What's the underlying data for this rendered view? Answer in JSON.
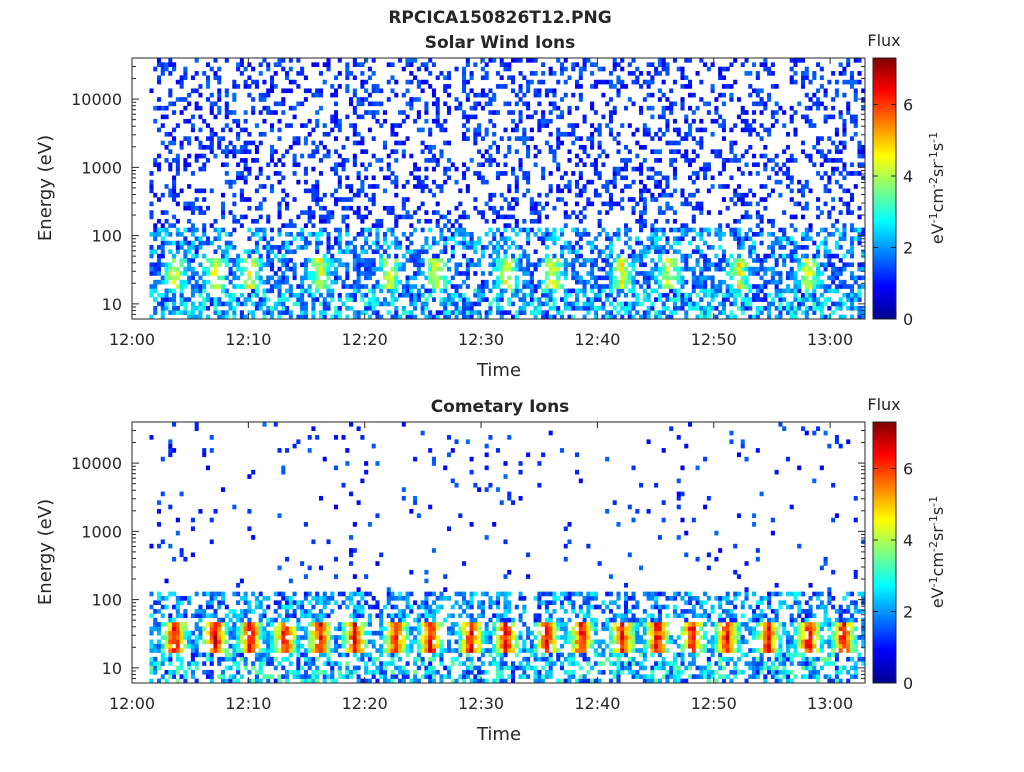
{
  "figure_title": "RPCICA150826T12.PNG",
  "colorbar": {
    "title": "Flux",
    "unit_parts": [
      "eV",
      "-1",
      "cm",
      "-2",
      "sr",
      "-1",
      "s",
      "-1"
    ],
    "ticks": [
      "0",
      "2",
      "4",
      "6"
    ],
    "range": [
      0,
      7.3
    ],
    "colormap": "jet"
  },
  "chart_data": [
    {
      "type": "heatmap",
      "title": "Solar Wind Ions",
      "xlabel": "Time",
      "ylabel": "Energy (eV)",
      "x_ticks": [
        "12:00",
        "12:10",
        "12:20",
        "12:30",
        "12:40",
        "12:50",
        "13:00"
      ],
      "x_range_minutes": [
        0,
        63
      ],
      "data_x_range_minutes": [
        1.5,
        63
      ],
      "y_ticks": [
        "10",
        "100",
        "1000",
        "10000"
      ],
      "y_scale": "log",
      "y_range": [
        6,
        40000
      ],
      "z_range": [
        0,
        7.3
      ],
      "dominant_band_eV": [
        15,
        45
      ],
      "band_peak_flux": 4.5,
      "band_peak_times_minutes": [
        3.5,
        7,
        10,
        16,
        22,
        26,
        32,
        36,
        42,
        46,
        52,
        58
      ]
    },
    {
      "type": "heatmap",
      "title": "Cometary Ions",
      "xlabel": "Time",
      "ylabel": "Energy (eV)",
      "x_ticks": [
        "12:00",
        "12:10",
        "12:20",
        "12:30",
        "12:40",
        "12:50",
        "13:00"
      ],
      "x_range_minutes": [
        0,
        63
      ],
      "data_x_range_minutes": [
        1.5,
        63
      ],
      "y_ticks": [
        "10",
        "100",
        "1000",
        "10000"
      ],
      "y_scale": "log",
      "y_range": [
        6,
        40000
      ],
      "z_range": [
        0,
        7.3
      ],
      "dominant_band_eV": [
        15,
        45
      ],
      "band_peak_flux": 6.5,
      "band_peak_times_minutes": [
        3.5,
        7,
        10,
        13,
        16,
        19,
        22.5,
        25.5,
        29,
        32,
        35.5,
        38.5,
        42,
        45,
        48,
        51,
        54.5,
        58,
        61
      ]
    }
  ]
}
